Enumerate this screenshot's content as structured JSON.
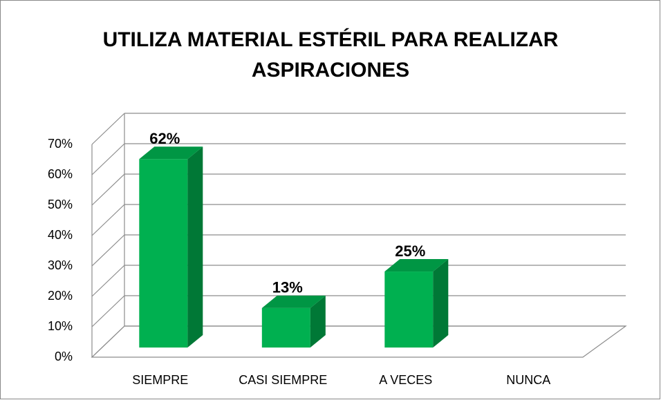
{
  "chart_data": {
    "type": "bar3d",
    "title": "UTILIZA MATERIAL ESTÉRIL PARA REALIZAR ASPIRACIONES",
    "categories": [
      "SIEMPRE",
      "CASI SIEMPRE",
      "A VECES",
      "NUNCA"
    ],
    "values": [
      62,
      13,
      25,
      0
    ],
    "value_labels": [
      "62%",
      "13%",
      "25%",
      null
    ],
    "color": "#00b050",
    "ylim": [
      0,
      70
    ],
    "yticks": [
      {
        "value": 0,
        "label": "0%"
      },
      {
        "value": 10,
        "label": "10%"
      },
      {
        "value": 20,
        "label": "20%"
      },
      {
        "value": 30,
        "label": "30%"
      },
      {
        "value": 40,
        "label": "40%"
      },
      {
        "value": 50,
        "label": "50%"
      },
      {
        "value": 60,
        "label": "60%"
      },
      {
        "value": 70,
        "label": "70%"
      }
    ],
    "grid": true
  }
}
